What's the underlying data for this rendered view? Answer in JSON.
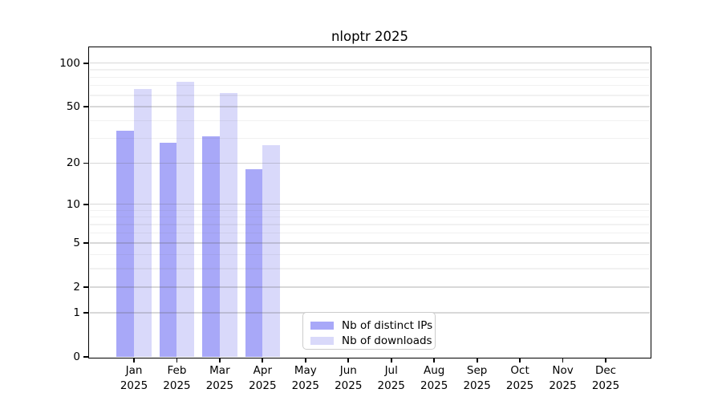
{
  "title": "nloptr 2025",
  "chart_data": {
    "type": "bar",
    "title": "nloptr 2025",
    "categories": [
      "Jan",
      "Feb",
      "Mar",
      "Apr",
      "May",
      "Jun",
      "Jul",
      "Aug",
      "Sep",
      "Oct",
      "Nov",
      "Dec"
    ],
    "x_tick_year": "2025",
    "series": [
      {
        "name": "Nb of distinct IPs",
        "color": "#a8a8f8",
        "values": [
          34,
          28,
          31,
          18,
          null,
          null,
          null,
          null,
          null,
          null,
          null,
          null
        ]
      },
      {
        "name": "Nb of downloads",
        "color": "#d9d9fa",
        "values": [
          66,
          74,
          62,
          27,
          null,
          null,
          null,
          null,
          null,
          null,
          null,
          null
        ]
      }
    ],
    "y_axis": {
      "scale": "log10(1+v)",
      "ticks": [
        0,
        1,
        2,
        5,
        10,
        20,
        50,
        100
      ],
      "minor_gridlines": [
        3,
        4,
        6,
        7,
        8,
        9,
        30,
        40,
        60,
        70,
        80,
        90
      ],
      "max": 127
    },
    "legend": {
      "position": "bottom-center",
      "border_color": "#cccccc"
    },
    "grid": "on",
    "background_color": "#ffffff"
  }
}
